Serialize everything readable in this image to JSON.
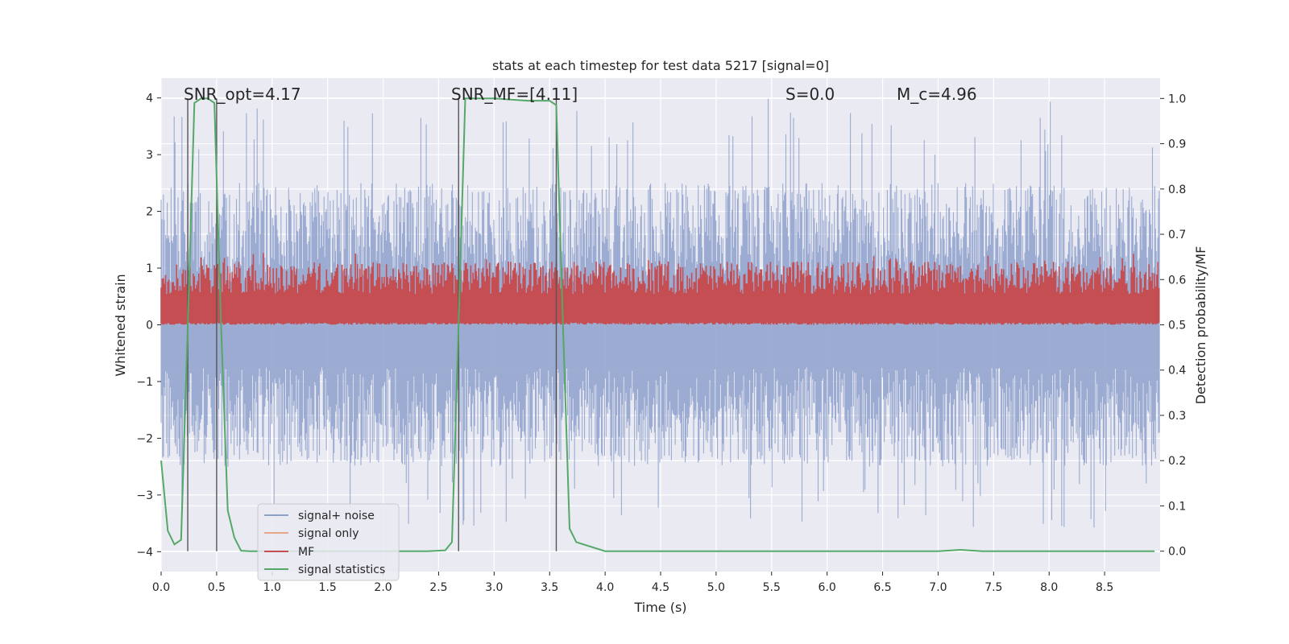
{
  "chart_data": {
    "type": "line",
    "title": "stats at each timestep for test data 5217 [signal=0]",
    "xlabel": "Time (s)",
    "ylabel": "Whitened strain",
    "y2label": "Detection probability/MF",
    "xlim": [
      0.0,
      9.0
    ],
    "ylim": [
      -4.35,
      4.35
    ],
    "y2lim": [
      -0.045,
      1.045
    ],
    "xticks": [
      0.0,
      0.5,
      1.0,
      1.5,
      2.0,
      2.5,
      3.0,
      3.5,
      4.0,
      4.5,
      5.0,
      5.5,
      6.0,
      6.5,
      7.0,
      7.5,
      8.0,
      8.5
    ],
    "xtick_labels": [
      "0.0",
      "0.5",
      "1.0",
      "1.5",
      "2.0",
      "2.5",
      "3.0",
      "3.5",
      "4.0",
      "4.5",
      "5.0",
      "5.5",
      "6.0",
      "6.5",
      "7.0",
      "7.5",
      "8.0",
      "8.5"
    ],
    "yticks": [
      4,
      3,
      2,
      1,
      0,
      -1,
      -2,
      -3,
      -4
    ],
    "ytick_labels": [
      "4",
      "3",
      "2",
      "1",
      "0",
      "−1",
      "−2",
      "−3",
      "−4"
    ],
    "y2ticks": [
      1.0,
      0.9,
      0.8,
      0.7,
      0.6,
      0.5,
      0.4,
      0.3,
      0.2,
      0.1,
      0.0
    ],
    "y2tick_labels": [
      "1.0",
      "0.9",
      "0.8",
      "0.7",
      "0.6",
      "0.5",
      "0.4",
      "0.3",
      "0.2",
      "0.1",
      "0.0"
    ],
    "grid": true,
    "annotations": [
      {
        "text": "SNR_opt=4.17",
        "x": 0.2,
        "y": 4.1
      },
      {
        "text": "SNR_MF=[4.11]",
        "x": 2.6,
        "y": 4.1
      },
      {
        "text": "S=0.0",
        "x": 5.6,
        "y": 4.1
      },
      {
        "text": "M_c=4.96",
        "x": 6.6,
        "y": 4.1
      }
    ],
    "vertical_markers": [
      0.24,
      0.5,
      2.68,
      3.56
    ],
    "series": [
      {
        "name": "signal+ noise",
        "color": "#8da0cb",
        "axis": "left",
        "kind": "noise",
        "envelope": [
          -2.5,
          2.5
        ],
        "peak": [
          -3.6,
          4.0
        ]
      },
      {
        "name": "signal only",
        "color": "#e8a68a",
        "axis": "left",
        "kind": "flat",
        "values": [
          0,
          0
        ]
      },
      {
        "name": "MF",
        "color": "#c44e52",
        "axis": "right",
        "kind": "noise",
        "envelope": [
          0.5,
          0.64
        ],
        "peak": [
          0.5,
          0.66
        ]
      },
      {
        "name": "signal statistics",
        "color": "#55a868",
        "axis": "right",
        "x": [
          0.0,
          0.06,
          0.12,
          0.18,
          0.24,
          0.3,
          0.36,
          0.42,
          0.48,
          0.54,
          0.6,
          0.66,
          0.72,
          0.8,
          1.0,
          1.5,
          2.0,
          2.4,
          2.56,
          2.62,
          2.68,
          2.74,
          3.0,
          3.3,
          3.5,
          3.56,
          3.62,
          3.68,
          3.74,
          4.0,
          5.0,
          6.0,
          7.0,
          7.2,
          7.4,
          8.0,
          8.5,
          8.95
        ],
        "values": [
          0.2,
          0.045,
          0.015,
          0.025,
          0.5,
          0.99,
          1.0,
          1.0,
          0.99,
          0.5,
          0.09,
          0.03,
          0.001,
          0.0,
          0.0,
          0.0,
          0.0,
          0.0,
          0.002,
          0.02,
          0.5,
          1.0,
          1.0,
          0.995,
          0.995,
          0.985,
          0.5,
          0.05,
          0.02,
          0.0,
          0.0,
          0.0,
          0.0,
          0.003,
          0.0,
          0.0,
          0.0,
          0.0
        ]
      }
    ],
    "legend": {
      "placement": "lower-left",
      "entries": [
        "signal+ noise",
        "signal only",
        "MF",
        "signal statistics"
      ]
    }
  },
  "colors": {
    "plot_bg": "#eaeaf2",
    "grid": "#ffffff",
    "marker": "#555555"
  }
}
